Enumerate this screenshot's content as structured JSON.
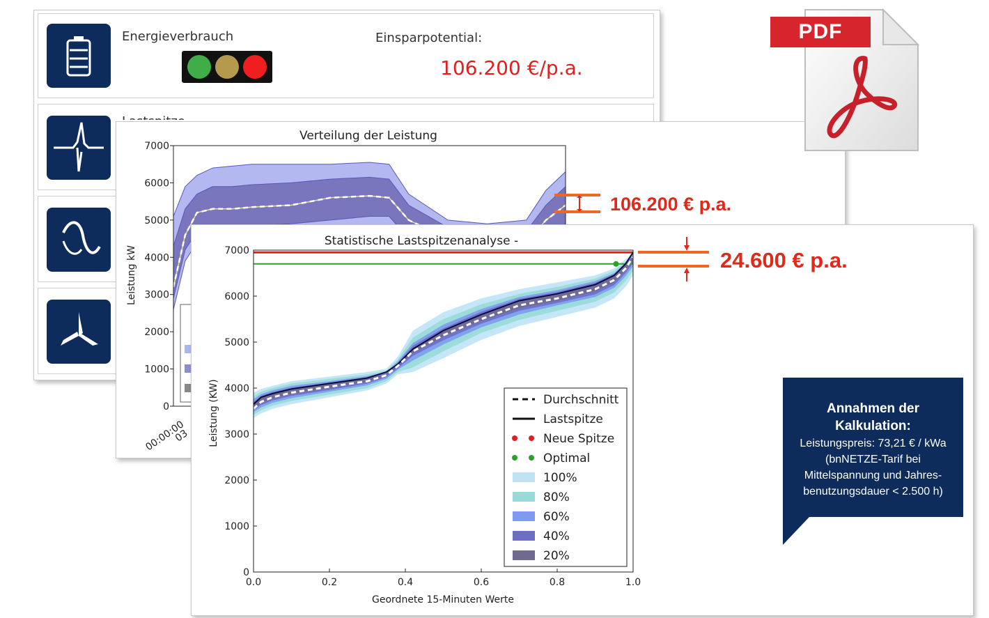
{
  "dashboard": {
    "energy_label": "Energieverbrauch",
    "savings_label": "Einsparpotential:",
    "savings_value": "106.200 €/p.a.",
    "row2_label_partial": "Lastspitze",
    "traffic_light_colors": [
      "#3fae49",
      "#b59a4e",
      "#f01e1e"
    ],
    "icons": [
      "battery-icon",
      "spike-icon",
      "wave-icon",
      "rotor-icon"
    ]
  },
  "annotations": {
    "chart1_savings": "106.200 € p.a.",
    "chart2_savings": "24.600 € p.a."
  },
  "pdf_badge": {
    "label": "PDF",
    "color": "#d7252d"
  },
  "note": {
    "title_line1": "Annahmen der",
    "title_line2": "Kalkulation:",
    "body_lines": [
      "Leistungspreis: 73,21 € / kWa",
      "(bnNETZE-Tarif bei",
      "Mittelspannung und Jahres-",
      "benutzungsdauer < 2.500 h)"
    ]
  },
  "chart_data": [
    {
      "type": "area",
      "title": "Verteilung der Leistung",
      "ylabel": "Leistung kW",
      "ylim": [
        0,
        7000
      ],
      "yticks": [
        "0",
        "1000",
        "2000",
        "3000",
        "4000",
        "5000",
        "6000",
        "7000"
      ],
      "xtick_labels_visible": [
        "00:00:00",
        "03"
      ],
      "mean_series": {
        "name": "Durchschnitt",
        "t": [
          0.0,
          0.03,
          0.06,
          0.1,
          0.15,
          0.2,
          0.3,
          0.4,
          0.5,
          0.55,
          0.6,
          0.7,
          0.8,
          0.9,
          0.95,
          1.0
        ],
        "values": [
          3200,
          4600,
          5200,
          5300,
          5300,
          5350,
          5400,
          5600,
          5650,
          5600,
          5000,
          4500,
          4300,
          4400,
          5000,
          5400
        ]
      },
      "bands": [
        {
          "name": "100%",
          "upper": [
            5100,
            5900,
            6200,
            6400,
            6450,
            6500,
            6500,
            6500,
            6550,
            6500,
            5700,
            5000,
            4900,
            5000,
            5800,
            6300
          ],
          "lower": [
            2600,
            3900,
            4400,
            4500,
            4500,
            4550,
            4600,
            4700,
            4800,
            4800,
            4200,
            3800,
            3600,
            3700,
            4200,
            4600
          ]
        },
        {
          "name": "60%",
          "upper": [
            4300,
            5300,
            5700,
            5900,
            5900,
            5950,
            6000,
            6100,
            6150,
            6100,
            5400,
            4800,
            4600,
            4700,
            5400,
            5900
          ],
          "lower": [
            2900,
            4200,
            4700,
            4800,
            4800,
            4850,
            4900,
            5000,
            5100,
            5100,
            4500,
            4100,
            3900,
            4000,
            4600,
            4900
          ]
        }
      ]
    },
    {
      "type": "line",
      "title": "Statistische Lastspitzenanalyse -",
      "xlabel": "Geordnete 15-Minuten Werte",
      "ylabel": "Leistung (KW)",
      "xlim": [
        0.0,
        1.0
      ],
      "ylim": [
        0,
        7000
      ],
      "xticks": [
        "0.0",
        "0.2",
        "0.4",
        "0.6",
        "0.8",
        "1.0"
      ],
      "yticks": [
        "0",
        "1000",
        "2000",
        "3000",
        "4000",
        "5000",
        "6000",
        "7000"
      ],
      "x": [
        0.0,
        0.02,
        0.05,
        0.1,
        0.2,
        0.3,
        0.35,
        0.38,
        0.42,
        0.5,
        0.6,
        0.7,
        0.8,
        0.9,
        0.95,
        0.98,
        1.0
      ],
      "series": [
        {
          "name": "Durchschnitt",
          "style": "dashed",
          "values": [
            3550,
            3700,
            3800,
            3900,
            4030,
            4150,
            4280,
            4480,
            4800,
            5150,
            5500,
            5800,
            5950,
            6150,
            6350,
            6600,
            6850
          ]
        },
        {
          "name": "Lastspitze",
          "style": "solid",
          "values": [
            3650,
            3800,
            3880,
            3980,
            4100,
            4220,
            4350,
            4520,
            4850,
            5250,
            5600,
            5900,
            6050,
            6250,
            6450,
            6700,
            6950
          ]
        }
      ],
      "bands": [
        {
          "name": "100%",
          "upper": [
            3900,
            3980,
            4050,
            4150,
            4250,
            4350,
            4420,
            4680,
            5250,
            5650,
            5950,
            6150,
            6300,
            6450,
            6600,
            6800,
            6950
          ],
          "lower": [
            3350,
            3450,
            3550,
            3650,
            3800,
            3950,
            4100,
            4300,
            4350,
            4650,
            5050,
            5350,
            5550,
            5750,
            5950,
            6200,
            6450
          ]
        },
        {
          "name": "80%",
          "upper": [
            3820,
            3920,
            4000,
            4100,
            4200,
            4300,
            4380,
            4620,
            5100,
            5500,
            5820,
            6050,
            6200,
            6380,
            6550,
            6750,
            6920
          ],
          "lower": [
            3420,
            3520,
            3620,
            3720,
            3860,
            4000,
            4150,
            4350,
            4450,
            4800,
            5200,
            5480,
            5680,
            5880,
            6080,
            6330,
            6550
          ]
        },
        {
          "name": "60%",
          "upper": [
            3760,
            3870,
            3950,
            4050,
            4150,
            4260,
            4350,
            4580,
            4980,
            5380,
            5720,
            5980,
            6130,
            6330,
            6500,
            6720,
            6900
          ],
          "lower": [
            3480,
            3580,
            3680,
            3780,
            3920,
            4060,
            4200,
            4400,
            4600,
            4950,
            5320,
            5600,
            5800,
            5980,
            6180,
            6430,
            6650
          ]
        },
        {
          "name": "40%",
          "upper": [
            3700,
            3830,
            3910,
            4010,
            4120,
            4230,
            4330,
            4550,
            4920,
            5300,
            5660,
            5940,
            6090,
            6290,
            6480,
            6700,
            6880
          ],
          "lower": [
            3520,
            3630,
            3730,
            3830,
            3960,
            4100,
            4240,
            4430,
            4700,
            5040,
            5400,
            5680,
            5850,
            6040,
            6240,
            6500,
            6720
          ]
        },
        {
          "name": "20%",
          "upper": [
            3640,
            3790,
            3870,
            3970,
            4090,
            4200,
            4310,
            4520,
            4880,
            5230,
            5600,
            5900,
            6040,
            6250,
            6440,
            6680,
            6860
          ],
          "lower": [
            3560,
            3670,
            3770,
            3870,
            4000,
            4140,
            4280,
            4460,
            4760,
            5120,
            5460,
            5740,
            5900,
            6100,
            6300,
            6560,
            6780
          ]
        }
      ],
      "reference_lines": [
        {
          "name": "Neue Spitze",
          "y": 6950,
          "color": "#e02020"
        },
        {
          "name": "Optimal",
          "y": 6700,
          "color": "#2ca02c"
        }
      ],
      "legend": {
        "position": "lower-right",
        "entries": [
          "Durchschnitt",
          "Lastspitze",
          "Neue Spitze",
          "Optimal",
          "100%",
          "80%",
          "60%",
          "40%",
          "20%"
        ]
      },
      "band_colors": {
        "100%": "#bfe3f5",
        "80%": "#97dbd8",
        "60%": "#7f9bf0",
        "40%": "#6c6fc4",
        "20%": "#6f6a8e"
      }
    }
  ]
}
